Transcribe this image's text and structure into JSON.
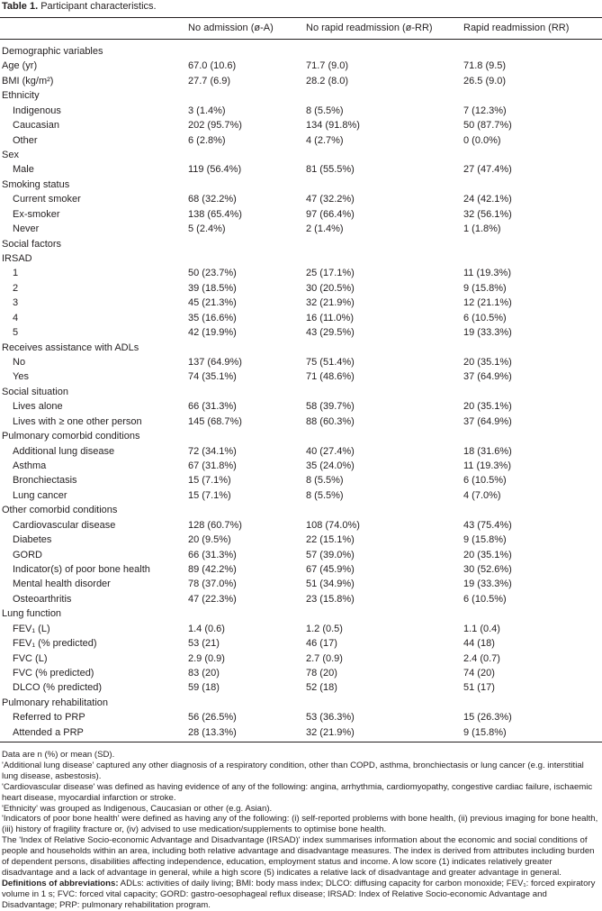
{
  "title": {
    "label": "Table 1.",
    "text": "Participant characteristics."
  },
  "table": {
    "header": [
      "No admission (ø-A)",
      "No rapid readmission (ø-RR)",
      "Rapid readmission (RR)"
    ],
    "body": [
      {
        "label": "Demographic variables"
      },
      {
        "label": "Age (yr)",
        "values": [
          "67.0 (10.6)",
          "71.7 (9.0)",
          "71.8 (9.5)"
        ]
      },
      {
        "label": "BMI (kg/m²)",
        "values": [
          "27.7 (6.9)",
          "28.2 (8.0)",
          "26.5 (9.0)"
        ]
      },
      {
        "label": "Ethnicity",
        "rows": [
          {
            "label": "Indigenous",
            "values": [
              "3 (1.4%)",
              "8 (5.5%)",
              "7 (12.3%)"
            ]
          },
          {
            "label": "Caucasian",
            "values": [
              "202 (95.7%)",
              "134 (91.8%)",
              "50 (87.7%)"
            ]
          },
          {
            "label": "Other",
            "values": [
              "6 (2.8%)",
              "4 (2.7%)",
              "0 (0.0%)"
            ]
          }
        ]
      },
      {
        "label": "Sex",
        "rows": [
          {
            "label": "Male",
            "values": [
              "119 (56.4%)",
              "81 (55.5%)",
              "27 (47.4%)"
            ]
          }
        ]
      },
      {
        "label": "Smoking status",
        "rows": [
          {
            "label": "Current smoker",
            "values": [
              "68 (32.2%)",
              "47 (32.2%)",
              "24 (42.1%)"
            ]
          },
          {
            "label": "Ex-smoker",
            "values": [
              "138 (65.4%)",
              "97 (66.4%)",
              "32 (56.1%)"
            ]
          },
          {
            "label": "Never",
            "values": [
              "5 (2.4%)",
              "2 (1.4%)",
              "1 (1.8%)"
            ]
          }
        ]
      },
      {
        "label": "Social factors"
      },
      {
        "label": "IRSAD",
        "rows": [
          {
            "label": "1",
            "values": [
              "50 (23.7%)",
              "25 (17.1%)",
              "11 (19.3%)"
            ]
          },
          {
            "label": "2",
            "values": [
              "39 (18.5%)",
              "30 (20.5%)",
              "9 (15.8%)"
            ]
          },
          {
            "label": "3",
            "values": [
              "45 (21.3%)",
              "32 (21.9%)",
              "12 (21.1%)"
            ]
          },
          {
            "label": "4",
            "values": [
              "35 (16.6%)",
              "16 (11.0%)",
              "6 (10.5%)"
            ]
          },
          {
            "label": "5",
            "values": [
              "42 (19.9%)",
              "43 (29.5%)",
              "19 (33.3%)"
            ]
          }
        ]
      },
      {
        "label": "Receives assistance with ADLs",
        "rows": [
          {
            "label": "No",
            "values": [
              "137 (64.9%)",
              "75 (51.4%)",
              "20 (35.1%)"
            ]
          },
          {
            "label": "Yes",
            "values": [
              "74 (35.1%)",
              "71 (48.6%)",
              "37 (64.9%)"
            ]
          }
        ]
      },
      {
        "label": "Social situation",
        "rows": [
          {
            "label": "Lives alone",
            "values": [
              "66 (31.3%)",
              "58 (39.7%)",
              "20 (35.1%)"
            ]
          },
          {
            "label": "Lives with ≥ one other person",
            "values": [
              "145 (68.7%)",
              "88 (60.3%)",
              "37 (64.9%)"
            ]
          }
        ]
      },
      {
        "label": "Pulmonary comorbid conditions",
        "rows": [
          {
            "label": "Additional lung disease",
            "values": [
              "72 (34.1%)",
              "40 (27.4%)",
              "18 (31.6%)"
            ]
          },
          {
            "label": "Asthma",
            "values": [
              "67 (31.8%)",
              "35 (24.0%)",
              "11 (19.3%)"
            ]
          },
          {
            "label": "Bronchiectasis",
            "values": [
              "15 (7.1%)",
              "8 (5.5%)",
              "6 (10.5%)"
            ]
          },
          {
            "label": "Lung cancer",
            "values": [
              "15 (7.1%)",
              "8 (5.5%)",
              "4 (7.0%)"
            ]
          }
        ]
      },
      {
        "label": "Other comorbid conditions",
        "rows": [
          {
            "label": "Cardiovascular disease",
            "values": [
              "128 (60.7%)",
              "108 (74.0%)",
              "43 (75.4%)"
            ]
          },
          {
            "label": "Diabetes",
            "values": [
              "20 (9.5%)",
              "22 (15.1%)",
              "9 (15.8%)"
            ]
          },
          {
            "label": "GORD",
            "values": [
              "66 (31.3%)",
              "57 (39.0%)",
              "20 (35.1%)"
            ]
          },
          {
            "label": "Indicator(s) of poor bone health",
            "values": [
              "89 (42.2%)",
              "67 (45.9%)",
              "30 (52.6%)"
            ]
          },
          {
            "label": "Mental health disorder",
            "values": [
              "78 (37.0%)",
              "51 (34.9%)",
              "19 (33.3%)"
            ]
          },
          {
            "label": "Osteoarthritis",
            "values": [
              "47 (22.3%)",
              "23 (15.8%)",
              "6 (10.5%)"
            ]
          }
        ]
      },
      {
        "label": "Lung function",
        "rows": [
          {
            "label": "FEV₁ (L)",
            "values": [
              "1.4 (0.6)",
              "1.2 (0.5)",
              "1.1 (0.4)"
            ]
          },
          {
            "label": "FEV₁ (% predicted)",
            "values": [
              "53 (21)",
              "46 (17)",
              "44 (18)"
            ]
          },
          {
            "label": "FVC (L)",
            "values": [
              "2.9 (0.9)",
              "2.7 (0.9)",
              "2.4 (0.7)"
            ]
          },
          {
            "label": "FVC (% predicted)",
            "values": [
              "83 (20)",
              "78 (20)",
              "74 (20)"
            ]
          },
          {
            "label": "DLCO (% predicted)",
            "values": [
              "59 (18)",
              "52 (18)",
              "51 (17)"
            ]
          }
        ]
      },
      {
        "label": "Pulmonary rehabilitation",
        "rows": [
          {
            "label": "Referred to PRP",
            "values": [
              "56 (26.5%)",
              "53 (36.3%)",
              "15 (26.3%)"
            ]
          },
          {
            "label": "Attended a PRP",
            "values": [
              "28 (13.3%)",
              "32 (21.9%)",
              "9 (15.8%)"
            ]
          }
        ]
      }
    ]
  },
  "notes": [
    "Data are n (%) or mean (SD).",
    "'Additional lung disease' captured any other diagnosis of a respiratory condition, other than COPD, asthma, bronchiectasis or lung cancer (e.g. interstitial lung disease, asbestosis).",
    "'Cardiovascular disease' was defined as having evidence of any of the following: angina, arrhythmia, cardiomyopathy, congestive cardiac failure, ischaemic heart disease, myocardial infarction or stroke.",
    "'Ethnicity' was grouped as Indigenous, Caucasian or other (e.g. Asian).",
    "'Indicators of poor bone health' were defined as having any of the following: (i) self-reported problems with bone health, (ii) previous imaging for bone health, (iii) history of fragility fracture or, (iv) advised to use medication/supplements to optimise bone health.",
    "The 'Index of Relative Socio-economic Advantage and Disadvantage (IRSAD)' index summarises information about the economic and social conditions of people and households within an area, including both relative advantage and disadvantage measures. The index is derived from attributes including burden of dependent persons, disabilities affecting independence, education, employment status and income. A low score (1) indicates relatively greater disadvantage and a lack of advantage in general, while a high score (5) indicates a relative lack of disadvantage and greater advantage in general."
  ],
  "definitions": {
    "label": "Definitions of abbreviations:",
    "text": "ADLs: activities of daily living; BMI: body mass index; DLCO: diffusing capacity for carbon monoxide; FEV₁: forced expiratory volume in 1 s; FVC: forced vital capacity; GORD: gastro-oesophageal reflux disease; IRSAD: Index of Relative Socio-economic Advantage and Disadvantage; PRP: pulmonary rehabilitation program."
  }
}
